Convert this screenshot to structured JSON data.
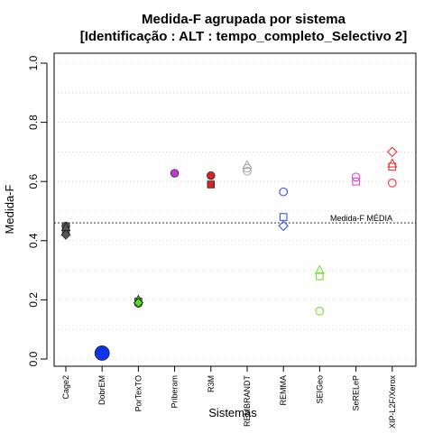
{
  "chart_data": {
    "type": "scatter",
    "title_line1": "Medida-F agrupada por sistema",
    "title_line2": "[Identificação : ALT : tempo_completo_Selectivo 2]",
    "xlabel": "Sistemas",
    "ylabel": "Medida-F",
    "ylim": [
      0,
      1
    ],
    "yticks": [
      "0.0",
      "0.2",
      "0.4",
      "0.6",
      "0.8",
      "1.0"
    ],
    "grid": "horizontal dotted",
    "categories": [
      "Cage2",
      "DobrEM",
      "PorTexTO",
      "Priberam",
      "R3M",
      "REMBRANDT",
      "REMMA",
      "SEIGeo",
      "SeRELeP",
      "XIP-L2F/Xerox"
    ],
    "reference_line": {
      "value": 0.46,
      "label": "Medida-F MÉDIA"
    },
    "points": [
      {
        "category": "Cage2",
        "value": 0.45,
        "shape": "circle",
        "color": "#555555",
        "filled": true
      },
      {
        "category": "Cage2",
        "value": 0.445,
        "shape": "triangle",
        "color": "#555555",
        "filled": true
      },
      {
        "category": "Cage2",
        "value": 0.435,
        "shape": "square",
        "color": "#555555",
        "filled": true
      },
      {
        "category": "Cage2",
        "value": 0.42,
        "shape": "diamond",
        "color": "#555555",
        "filled": true
      },
      {
        "category": "DobrEM",
        "value": 0.02,
        "shape": "circle",
        "color": "#1133ee",
        "filled": true,
        "size": "large"
      },
      {
        "category": "PorTexTO",
        "value": 0.2,
        "shape": "triangle",
        "color": "#55dd22",
        "filled": true
      },
      {
        "category": "PorTexTO",
        "value": 0.195,
        "shape": "square",
        "color": "#55dd22",
        "filled": true
      },
      {
        "category": "PorTexTO",
        "value": 0.19,
        "shape": "diamond",
        "color": "#55dd22",
        "filled": true
      },
      {
        "category": "PorTexTO",
        "value": 0.188,
        "shape": "circle",
        "color": "#55dd22",
        "filled": true
      },
      {
        "category": "Priberam",
        "value": 0.628,
        "shape": "circle",
        "color": "#cc33dd",
        "filled": true
      },
      {
        "category": "R3M",
        "value": 0.62,
        "shape": "circle",
        "color": "#dd2222",
        "filled": true
      },
      {
        "category": "R3M",
        "value": 0.59,
        "shape": "square",
        "color": "#dd2222",
        "filled": true
      },
      {
        "category": "REMBRANDT",
        "value": 0.655,
        "shape": "triangle",
        "color": "#aaaaaa",
        "filled": false
      },
      {
        "category": "REMBRANDT",
        "value": 0.645,
        "shape": "circle",
        "color": "#aaaaaa",
        "filled": false
      },
      {
        "category": "REMBRANDT",
        "value": 0.635,
        "shape": "circle",
        "color": "#aaaaaa",
        "filled": false
      },
      {
        "category": "REMMA",
        "value": 0.565,
        "shape": "circle",
        "color": "#3355ee",
        "filled": false
      },
      {
        "category": "REMMA",
        "value": 0.48,
        "shape": "square",
        "color": "#3355ee",
        "filled": false
      },
      {
        "category": "REMMA",
        "value": 0.45,
        "shape": "diamond",
        "color": "#3355ee",
        "filled": false
      },
      {
        "category": "SEIGeo",
        "value": 0.3,
        "shape": "triangle",
        "color": "#77dd33",
        "filled": false
      },
      {
        "category": "SEIGeo",
        "value": 0.28,
        "shape": "square",
        "color": "#77dd33",
        "filled": false
      },
      {
        "category": "SEIGeo",
        "value": 0.162,
        "shape": "circle",
        "color": "#77dd33",
        "filled": false
      },
      {
        "category": "SeRELeP",
        "value": 0.615,
        "shape": "circle",
        "color": "#dd44dd",
        "filled": false
      },
      {
        "category": "SeRELeP",
        "value": 0.6,
        "shape": "square",
        "color": "#dd44dd",
        "filled": false
      },
      {
        "category": "XIP-L2F/Xerox",
        "value": 0.7,
        "shape": "diamond",
        "color": "#ee3333",
        "filled": false
      },
      {
        "category": "XIP-L2F/Xerox",
        "value": 0.66,
        "shape": "triangle",
        "color": "#ee3333",
        "filled": false
      },
      {
        "category": "XIP-L2F/Xerox",
        "value": 0.65,
        "shape": "square",
        "color": "#ee3333",
        "filled": false
      },
      {
        "category": "XIP-L2F/Xerox",
        "value": 0.595,
        "shape": "circle",
        "color": "#ee3333",
        "filled": false
      }
    ]
  }
}
